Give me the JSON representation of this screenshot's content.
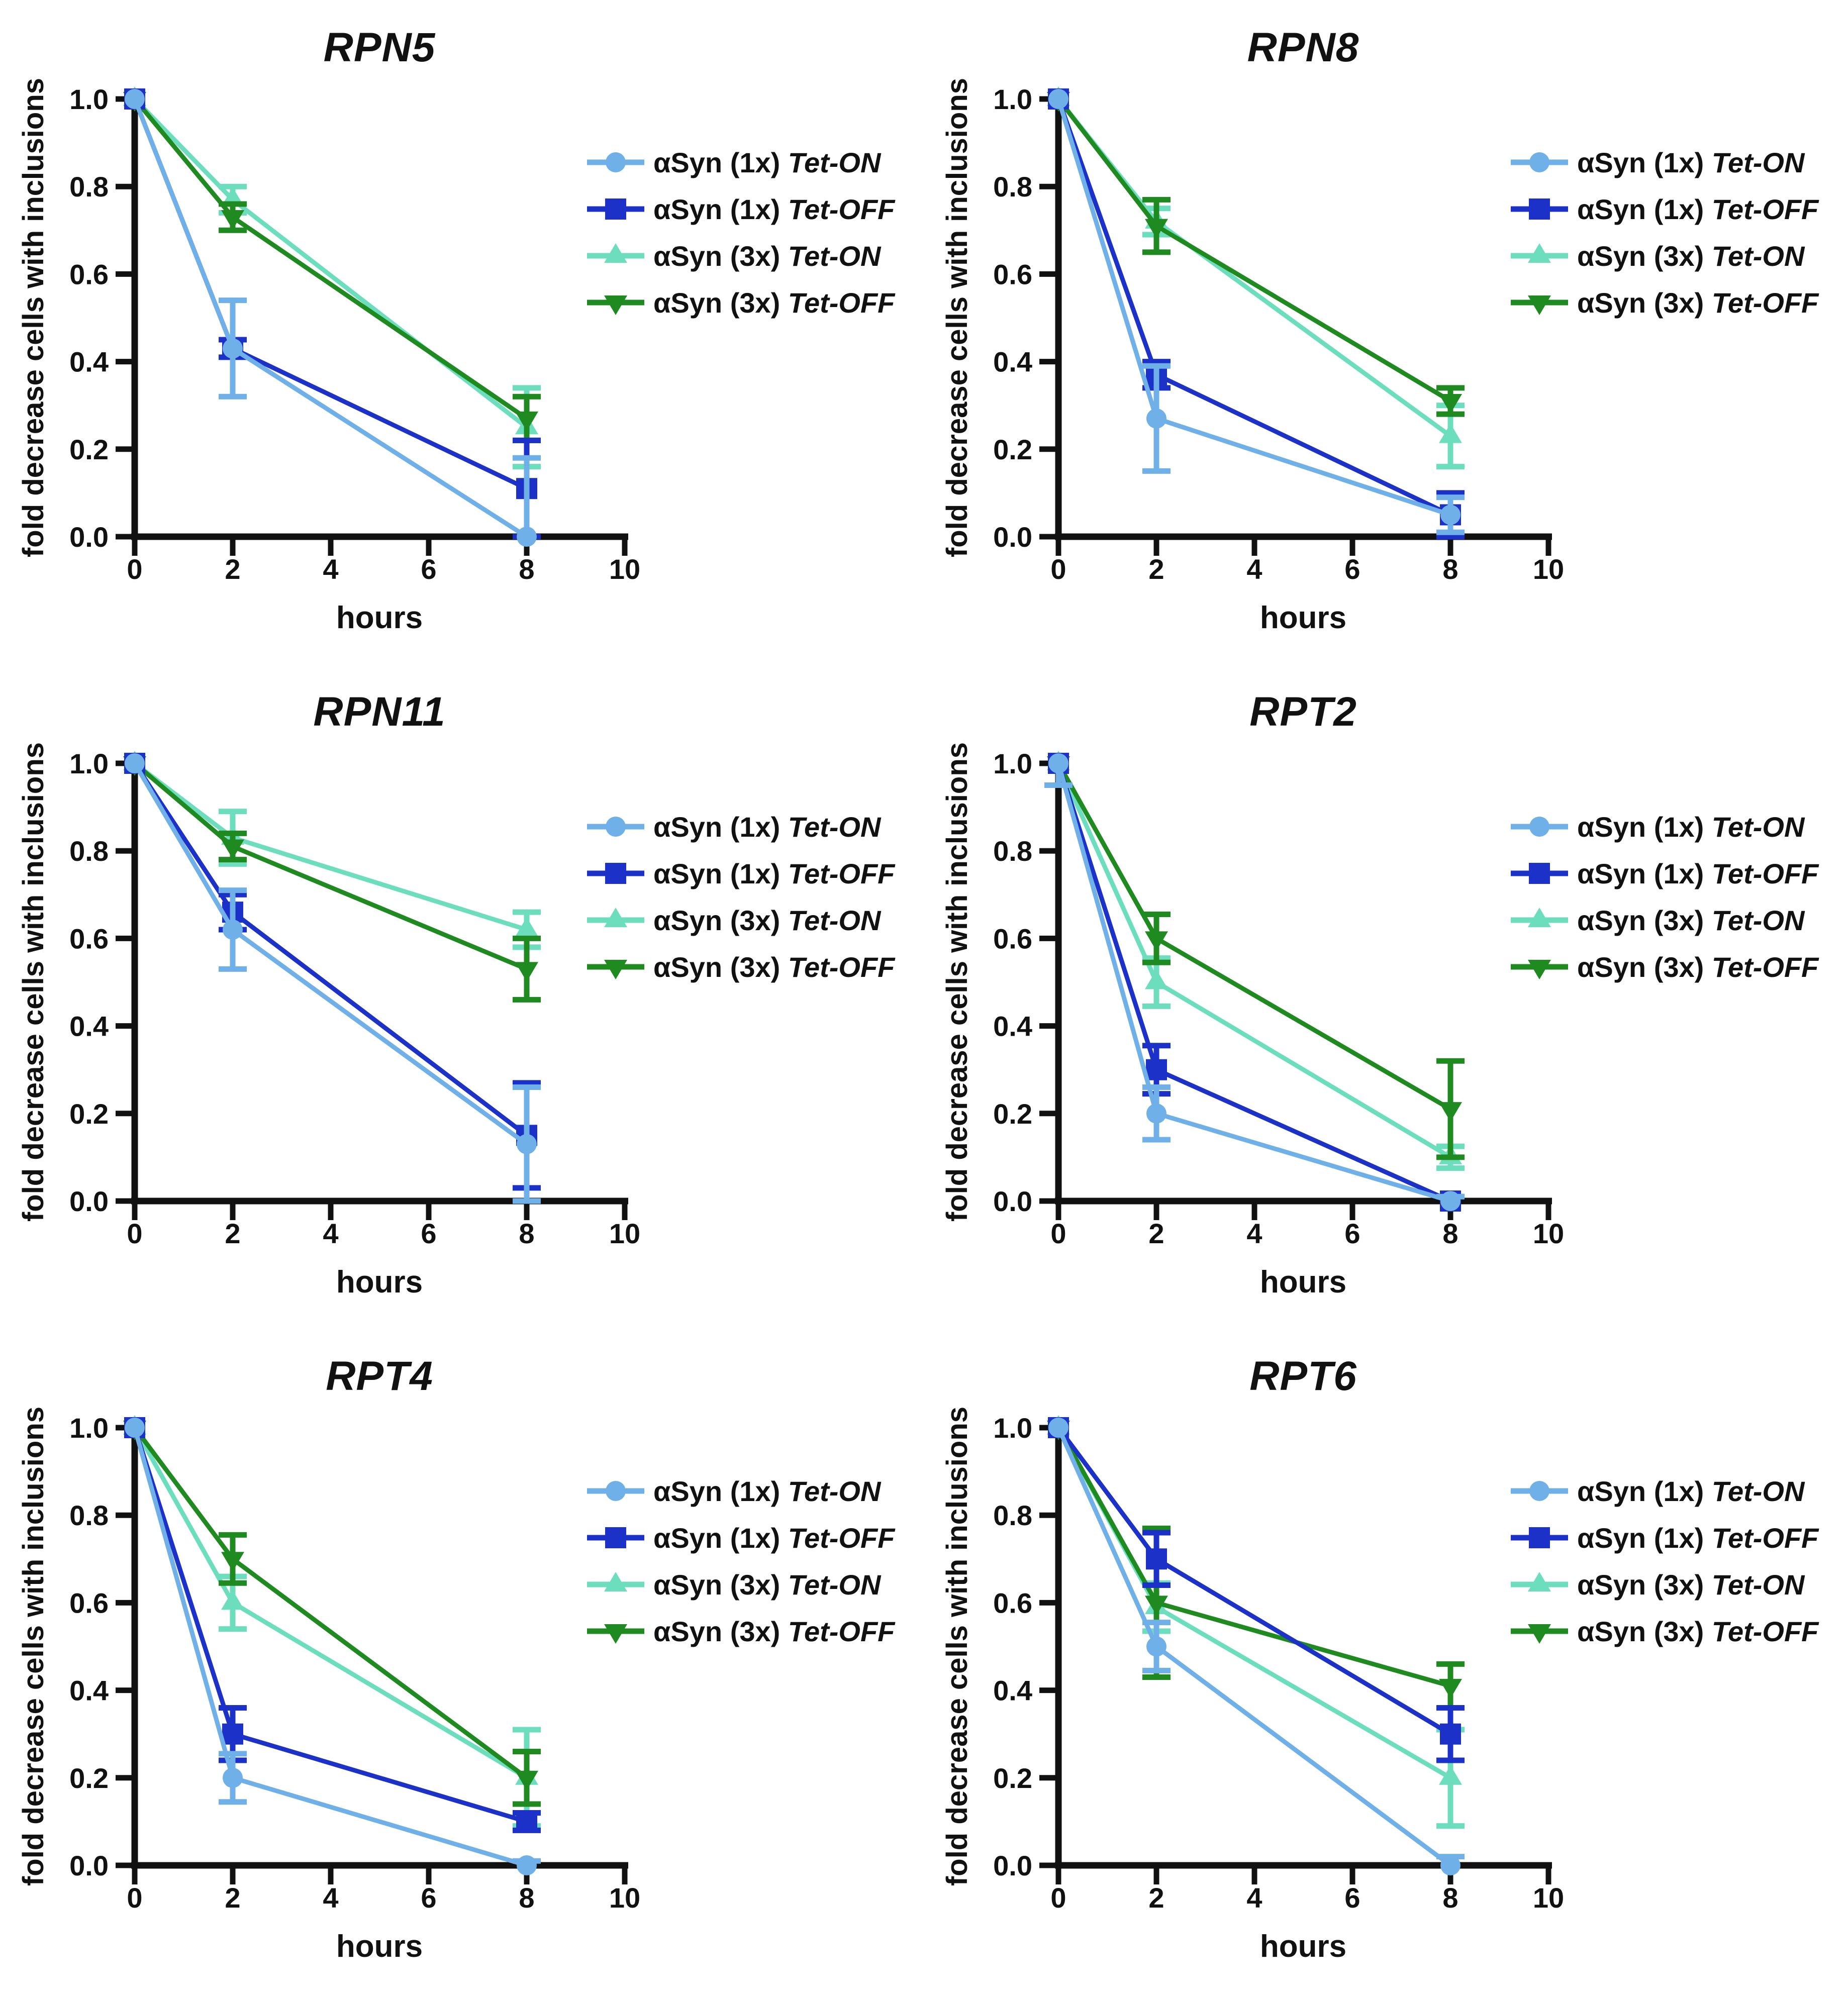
{
  "figure": {
    "background": "#ffffff",
    "xlabel": "hours",
    "ylabel": "fold decrease cells with inclusions",
    "xticks": [
      "0",
      "2",
      "4",
      "6",
      "8",
      "10"
    ],
    "yticks": [
      "0.0",
      "0.2",
      "0.4",
      "0.6",
      "0.8",
      "1.0"
    ],
    "axis_color": "#111111",
    "legend_position": "right",
    "series_styles": [
      {
        "key": "asyn-1x-tet-on",
        "color": "#6FB0E8",
        "marker": "circle",
        "label_prefix": "αSyn (1x) ",
        "label_variant": "Tet-ON"
      },
      {
        "key": "asyn-1x-tet-off",
        "color": "#1C31C7",
        "marker": "square",
        "label_prefix": "αSyn (1x) ",
        "label_variant": "Tet-OFF"
      },
      {
        "key": "asyn-3x-tet-on",
        "color": "#6CDEBE",
        "marker": "triangle-up",
        "label_prefix": "αSyn (3x) ",
        "label_variant": "Tet-ON"
      },
      {
        "key": "asyn-3x-tet-off",
        "color": "#1E8A20",
        "marker": "triangle-down",
        "label_prefix": "αSyn (3x) ",
        "label_variant": "Tet-OFF"
      }
    ]
  },
  "chart_data": [
    {
      "type": "line",
      "title": "RPN5",
      "xlabel": "hours",
      "ylabel": "fold decrease cells with inclusions",
      "x": [
        0,
        2,
        8
      ],
      "xlim": [
        0,
        10
      ],
      "ylim": [
        0,
        1
      ],
      "grid": false,
      "series": [
        {
          "name": "αSyn (1x) Tet-ON",
          "values": [
            1.0,
            0.43,
            0.0
          ],
          "errors": [
            0,
            0.11,
            0.18
          ]
        },
        {
          "name": "αSyn (1x) Tet-OFF",
          "values": [
            1.0,
            0.43,
            0.11
          ],
          "errors": [
            0,
            0.02,
            0.11
          ]
        },
        {
          "name": "αSyn (3x) Tet-ON",
          "values": [
            1.0,
            0.77,
            0.25
          ],
          "errors": [
            0,
            0.03,
            0.09
          ]
        },
        {
          "name": "αSyn (3x) Tet-OFF",
          "values": [
            1.0,
            0.73,
            0.27
          ],
          "errors": [
            0,
            0.03,
            0.05
          ]
        }
      ]
    },
    {
      "type": "line",
      "title": "RPN8",
      "xlabel": "hours",
      "ylabel": "fold decrease cells with inclusions",
      "x": [
        0,
        2,
        8
      ],
      "xlim": [
        0,
        10
      ],
      "ylim": [
        0,
        1
      ],
      "grid": false,
      "series": [
        {
          "name": "αSyn (1x) Tet-ON",
          "values": [
            1.0,
            0.27,
            0.05
          ],
          "errors": [
            0,
            0.12,
            0.04
          ]
        },
        {
          "name": "αSyn (1x) Tet-OFF",
          "values": [
            1.0,
            0.37,
            0.05
          ],
          "errors": [
            0,
            0.03,
            0.05
          ]
        },
        {
          "name": "αSyn (3x) Tet-ON",
          "values": [
            1.0,
            0.72,
            0.23
          ],
          "errors": [
            0,
            0.03,
            0.07
          ]
        },
        {
          "name": "αSyn (3x) Tet-OFF",
          "values": [
            1.0,
            0.71,
            0.31
          ],
          "errors": [
            0,
            0.06,
            0.03
          ]
        }
      ]
    },
    {
      "type": "line",
      "title": "RPN11",
      "xlabel": "hours",
      "ylabel": "fold decrease cells with inclusions",
      "x": [
        0,
        2,
        8
      ],
      "xlim": [
        0,
        10
      ],
      "ylim": [
        0,
        1
      ],
      "grid": false,
      "series": [
        {
          "name": "αSyn (1x) Tet-ON",
          "values": [
            1.0,
            0.62,
            0.13
          ],
          "errors": [
            0,
            0.09,
            0.13
          ]
        },
        {
          "name": "αSyn (1x) Tet-OFF",
          "values": [
            1.0,
            0.66,
            0.15
          ],
          "errors": [
            0,
            0.04,
            0.12
          ]
        },
        {
          "name": "αSyn (3x) Tet-ON",
          "values": [
            1.0,
            0.83,
            0.62
          ],
          "errors": [
            0,
            0.06,
            0.04
          ]
        },
        {
          "name": "αSyn (3x) Tet-OFF",
          "values": [
            1.0,
            0.81,
            0.53
          ],
          "errors": [
            0,
            0.03,
            0.07
          ]
        }
      ]
    },
    {
      "type": "line",
      "title": "RPT2",
      "xlabel": "hours",
      "ylabel": "fold decrease cells with inclusions",
      "x": [
        0,
        2,
        8
      ],
      "xlim": [
        0,
        10
      ],
      "ylim": [
        0,
        1
      ],
      "grid": false,
      "series": [
        {
          "name": "αSyn (1x) Tet-ON",
          "values": [
            1.0,
            0.2,
            0.0
          ],
          "errors": [
            0.05,
            0.06,
            0.01
          ]
        },
        {
          "name": "αSyn (1x) Tet-OFF",
          "values": [
            1.0,
            0.3,
            0.0
          ],
          "errors": [
            0,
            0.055,
            0.01
          ]
        },
        {
          "name": "αSyn (3x) Tet-ON",
          "values": [
            1.0,
            0.5,
            0.1
          ],
          "errors": [
            0.05,
            0.055,
            0.025
          ]
        },
        {
          "name": "αSyn (3x) Tet-OFF",
          "values": [
            1.0,
            0.6,
            0.21
          ],
          "errors": [
            0,
            0.055,
            0.11
          ]
        }
      ]
    },
    {
      "type": "line",
      "title": "RPT4",
      "xlabel": "hours",
      "ylabel": "fold decrease cells with inclusions",
      "x": [
        0,
        2,
        8
      ],
      "xlim": [
        0,
        10
      ],
      "ylim": [
        0,
        1
      ],
      "grid": false,
      "series": [
        {
          "name": "αSyn (1x) Tet-ON",
          "values": [
            1.0,
            0.2,
            0.0
          ],
          "errors": [
            0,
            0.055,
            0.01
          ]
        },
        {
          "name": "αSyn (1x) Tet-OFF",
          "values": [
            1.0,
            0.3,
            0.1
          ],
          "errors": [
            0,
            0.06,
            0.02
          ]
        },
        {
          "name": "αSyn (3x) Tet-ON",
          "values": [
            1.0,
            0.6,
            0.2
          ],
          "errors": [
            0,
            0.06,
            0.11
          ]
        },
        {
          "name": "αSyn (3x) Tet-OFF",
          "values": [
            1.0,
            0.7,
            0.2
          ],
          "errors": [
            0,
            0.055,
            0.06
          ]
        }
      ]
    },
    {
      "type": "line",
      "title": "RPT6",
      "xlabel": "hours",
      "ylabel": "fold decrease cells with inclusions",
      "x": [
        0,
        2,
        8
      ],
      "xlim": [
        0,
        10
      ],
      "ylim": [
        0,
        1
      ],
      "grid": false,
      "series": [
        {
          "name": "αSyn (1x) Tet-ON",
          "values": [
            1.0,
            0.5,
            0.0
          ],
          "errors": [
            0,
            0.055,
            0.02
          ]
        },
        {
          "name": "αSyn (1x) Tet-OFF",
          "values": [
            1.0,
            0.7,
            0.3
          ],
          "errors": [
            0,
            0.06,
            0.06
          ]
        },
        {
          "name": "αSyn (3x) Tet-ON",
          "values": [
            1.0,
            0.59,
            0.2
          ],
          "errors": [
            0,
            0.055,
            0.11
          ]
        },
        {
          "name": "αSyn (3x) Tet-OFF",
          "values": [
            1.0,
            0.6,
            0.41
          ],
          "errors": [
            0,
            0.17,
            0.05
          ]
        }
      ]
    }
  ]
}
